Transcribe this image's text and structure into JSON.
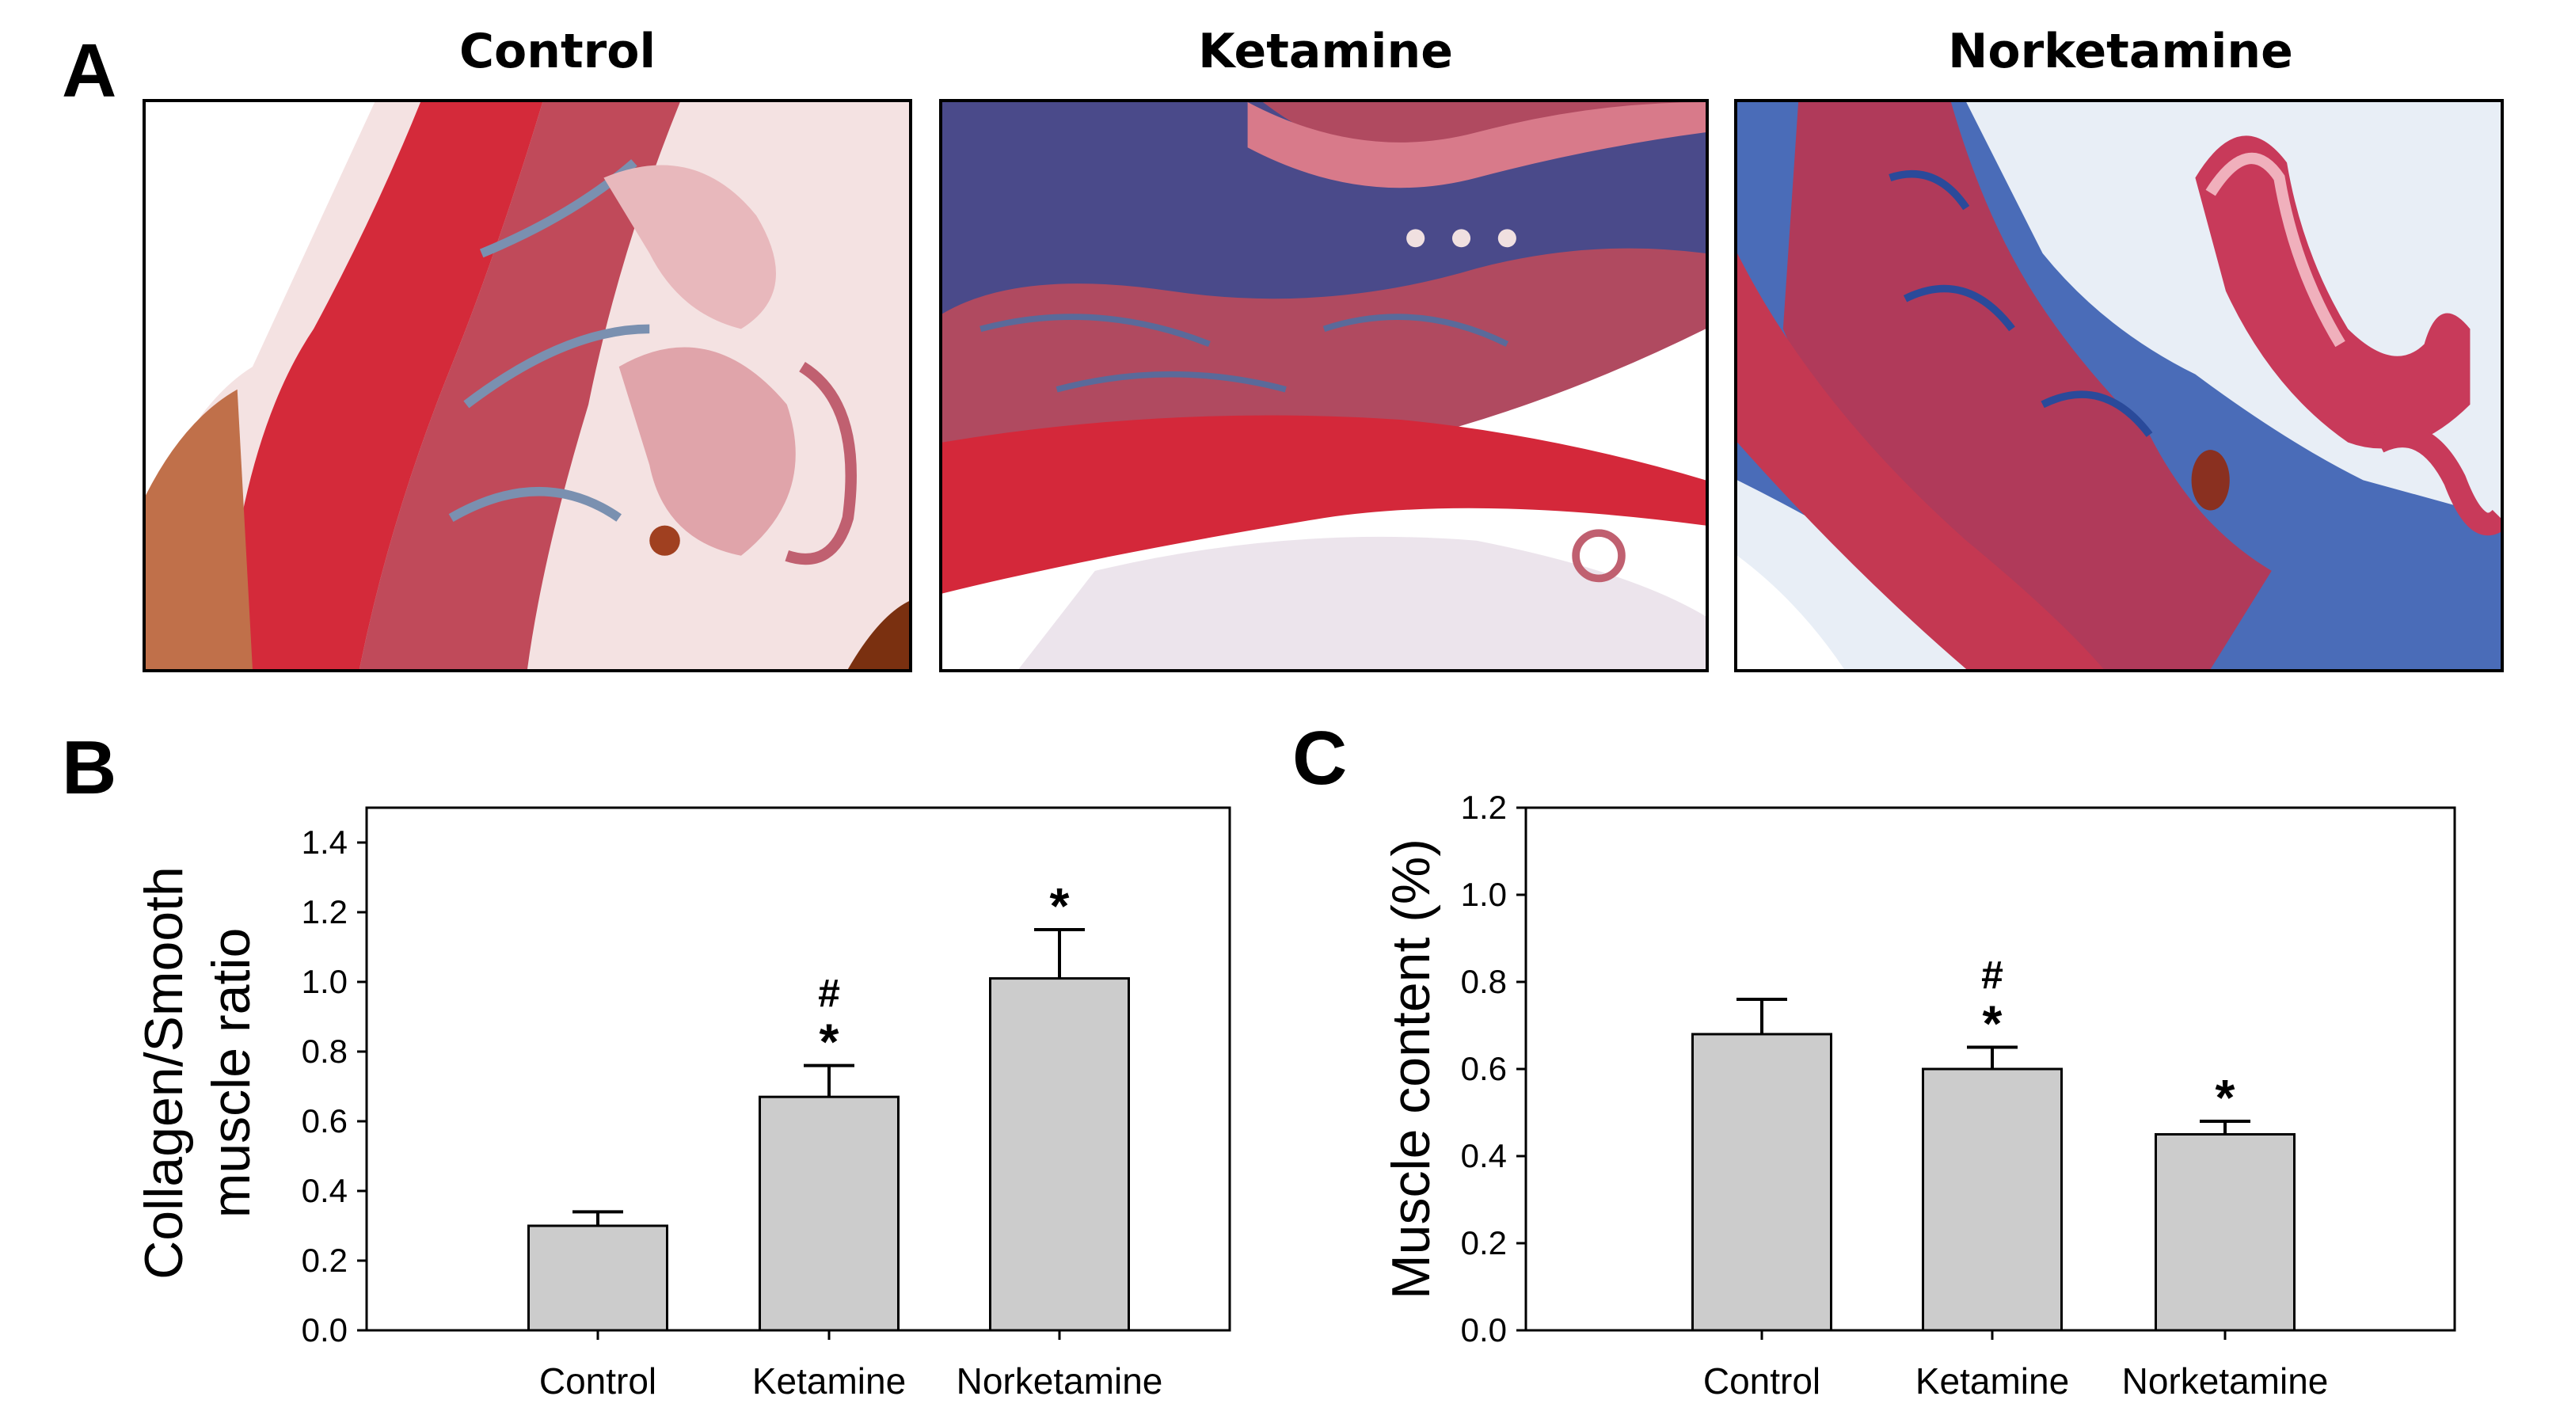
{
  "panels": {
    "A": {
      "letter": "A",
      "titles": [
        "Control",
        "Ketamine",
        "Norketamine"
      ]
    },
    "B": {
      "letter": "B"
    },
    "C": {
      "letter": "C"
    }
  },
  "colors": {
    "bar_fill": "#cccccc",
    "bar_stroke": "#000000",
    "muscle_red": "#c8283c",
    "collagen_blue": "#3a5aa8"
  },
  "chart_data": [
    {
      "type": "bar",
      "panel": "B",
      "categories": [
        "Control",
        "Ketamine",
        "Norketamine"
      ],
      "values": [
        0.3,
        0.67,
        1.01
      ],
      "errors": [
        0.04,
        0.09,
        0.14
      ],
      "annotations": [
        [],
        [
          "*",
          "#"
        ],
        [
          "*"
        ]
      ],
      "title": "",
      "xlabel": "",
      "ylabel": [
        "Collagen/Smooth",
        "muscle ratio"
      ],
      "ylim": [
        0,
        1.5
      ],
      "yticks": [
        "0.0",
        "0.2",
        "0.4",
        "0.6",
        "0.8",
        "1.0",
        "1.2",
        "1.4"
      ],
      "grid": false
    },
    {
      "type": "bar",
      "panel": "C",
      "categories": [
        "Control",
        "Ketamine",
        "Norketamine"
      ],
      "values": [
        0.68,
        0.6,
        0.45
      ],
      "errors": [
        0.08,
        0.05,
        0.03
      ],
      "annotations": [
        [],
        [
          "*",
          "#"
        ],
        [
          "*"
        ]
      ],
      "title": "",
      "xlabel": "",
      "ylabel": [
        "Muscle content (%)"
      ],
      "ylim": [
        0,
        1.2
      ],
      "yticks": [
        "0.0",
        "0.2",
        "0.4",
        "0.6",
        "0.8",
        "1.0",
        "1.2"
      ],
      "grid": false
    }
  ]
}
